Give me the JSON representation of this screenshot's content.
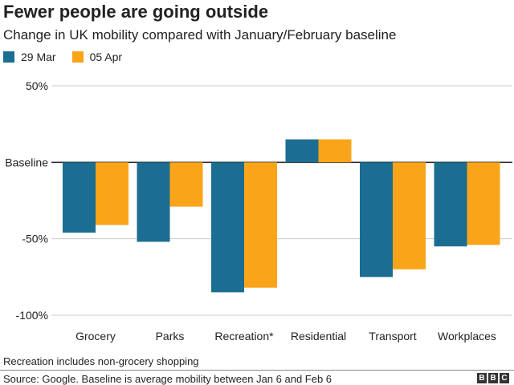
{
  "chart_data": {
    "type": "bar",
    "title": "Fewer people are going outside",
    "subtitle": "Change in UK mobility compared with January/February baseline",
    "categories": [
      "Grocery",
      "Parks",
      "Recreation*",
      "Residential",
      "Transport",
      "Workplaces"
    ],
    "series": [
      {
        "name": "29 Mar",
        "color": "#1b6e91",
        "values": [
          -46,
          -52,
          -85,
          15,
          -75,
          -55
        ]
      },
      {
        "name": "05 Apr",
        "color": "#faa41a",
        "values": [
          -41,
          -29,
          -82,
          15,
          -70,
          -54
        ]
      }
    ],
    "ylim": [
      -100,
      50
    ],
    "yticks": [
      {
        "value": 50,
        "label": "50%"
      },
      {
        "value": 0,
        "label": "Baseline"
      },
      {
        "value": -50,
        "label": "-50%"
      },
      {
        "value": -100,
        "label": "-100%"
      }
    ],
    "xlabel": "",
    "ylabel": "",
    "grid": true,
    "legend_position": "top-left"
  },
  "footer": {
    "note": "Recreation includes non-grocery shopping",
    "source": "Source: Google. Baseline is average mobility between Jan 6 and Feb 6",
    "logo_letters": [
      "B",
      "B",
      "C"
    ]
  }
}
